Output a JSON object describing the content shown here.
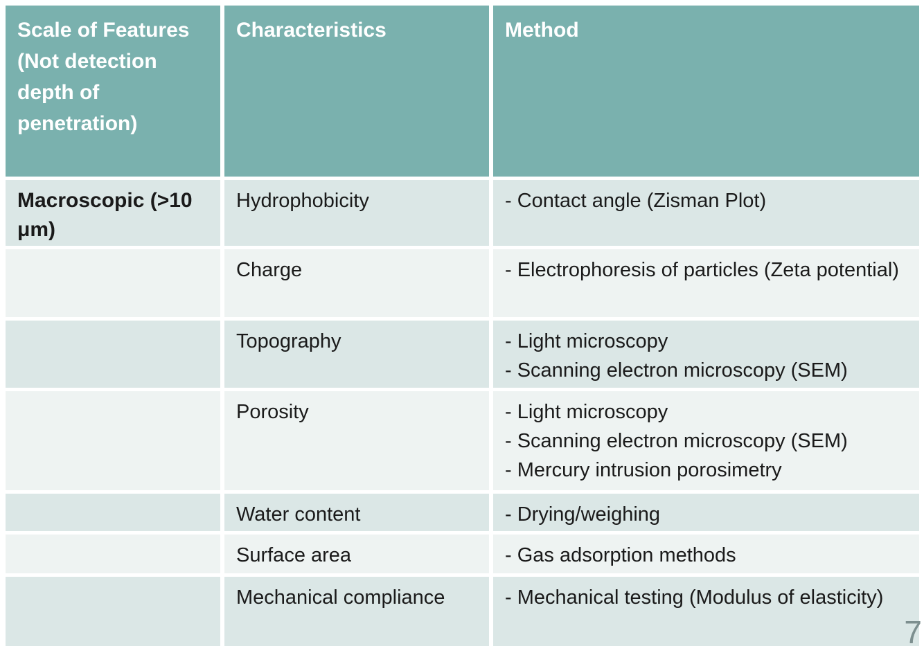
{
  "page_number": "7",
  "colors": {
    "header_bg": "#7ab1ae",
    "header_text": "#ffffff",
    "row_dark": "#dbe7e6",
    "row_light": "#eef3f2",
    "body_text": "#1a1a1a",
    "gap": "#ffffff",
    "page_number": "#7d8f8f"
  },
  "table": {
    "columns": [
      {
        "label": "Scale of Features (Not detection depth of penetration)"
      },
      {
        "label": "Characteristics"
      },
      {
        "label": "Method"
      }
    ],
    "rows": [
      {
        "scale": "Macroscopic (>10 μm)",
        "characteristic": "Hydrophobicity",
        "methods": [
          "- Contact angle (Zisman Plot)"
        ]
      },
      {
        "scale": "",
        "characteristic": "Charge",
        "methods": [
          "- Electrophoresis of particles (Zeta potential)"
        ]
      },
      {
        "scale": "",
        "characteristic": "Topography",
        "methods": [
          "- Light microscopy",
          "- Scanning electron microscopy (SEM)"
        ]
      },
      {
        "scale": "",
        "characteristic": "Porosity",
        "methods": [
          "- Light microscopy",
          "- Scanning electron microscopy (SEM)",
          "- Mercury intrusion porosimetry"
        ]
      },
      {
        "scale": "",
        "characteristic": "Water content",
        "methods": [
          "- Drying/weighing"
        ]
      },
      {
        "scale": "",
        "characteristic": "Surface area",
        "methods": [
          "- Gas adsorption methods"
        ]
      },
      {
        "scale": "",
        "characteristic": "Mechanical compliance",
        "methods": [
          "- Mechanical testing (Modulus of elasticity)"
        ]
      }
    ]
  }
}
